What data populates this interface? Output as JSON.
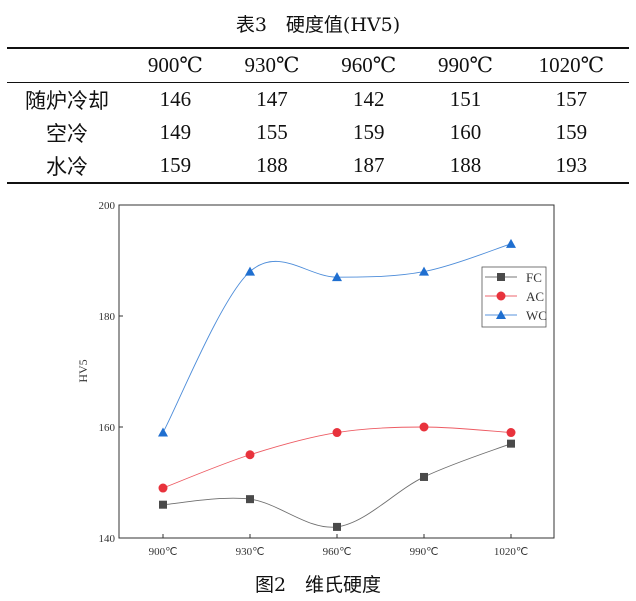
{
  "table": {
    "caption": "表3　硬度值(HV5)",
    "columns": [
      "",
      "900℃",
      "930℃",
      "960℃",
      "990℃",
      "1020℃"
    ],
    "rows": [
      [
        "随炉冷却",
        "146",
        "147",
        "142",
        "151",
        "157"
      ],
      [
        "空冷",
        "149",
        "155",
        "159",
        "160",
        "159"
      ],
      [
        "水冷",
        "159",
        "188",
        "187",
        "188",
        "193"
      ]
    ]
  },
  "figure_caption": "图2　维氏硬度",
  "chart_data": {
    "type": "line",
    "smoothed": true,
    "categories": [
      "900℃",
      "930℃",
      "960℃",
      "990℃",
      "1020℃"
    ],
    "ylabel": "HV5",
    "xlabel": "",
    "ylim": [
      140,
      200
    ],
    "yticks": [
      "140",
      "160",
      "180",
      "200"
    ],
    "legend_position": "top-right",
    "grid": false,
    "series": [
      {
        "name": "FC",
        "values": [
          146,
          147,
          142,
          151,
          157
        ],
        "color": "#4a4a4a",
        "marker": "square"
      },
      {
        "name": "AC",
        "values": [
          149,
          155,
          159,
          160,
          159
        ],
        "color": "#e8323c",
        "marker": "circle"
      },
      {
        "name": "WC",
        "values": [
          159,
          188,
          187,
          188,
          193
        ],
        "color": "#1f6fd0",
        "marker": "triangle"
      }
    ]
  }
}
